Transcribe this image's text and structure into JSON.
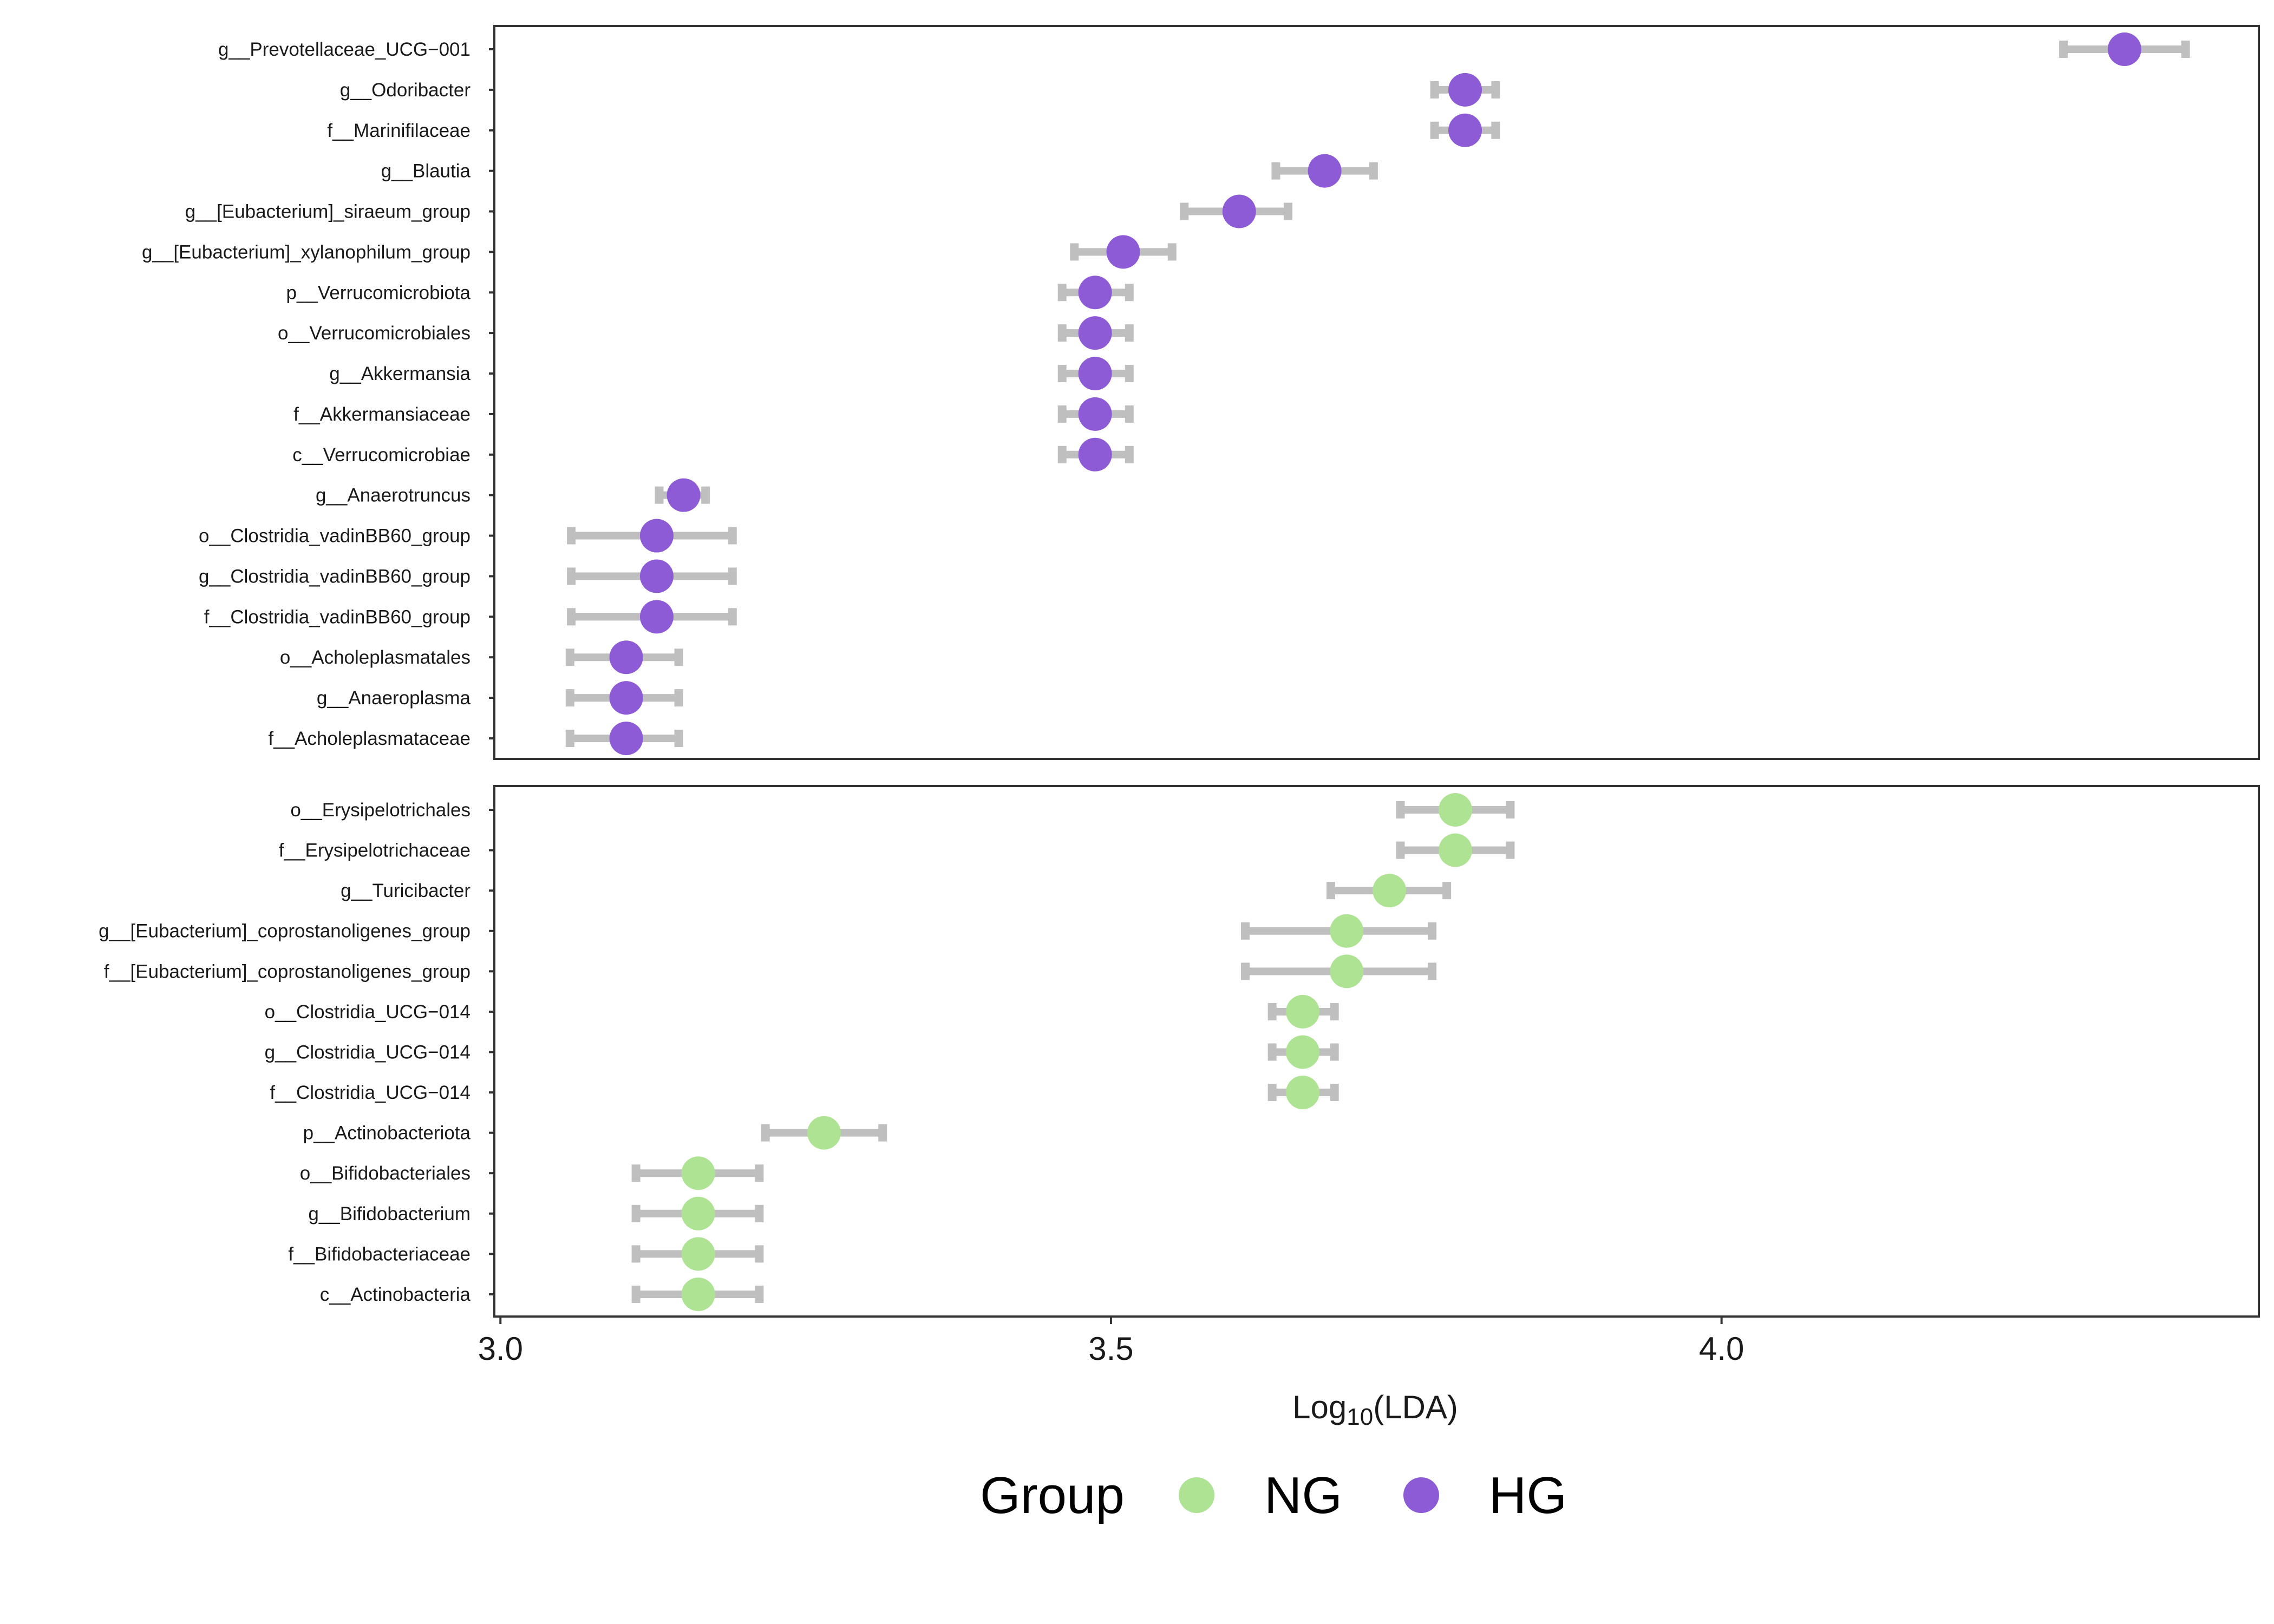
{
  "chart_data": {
    "type": "scatter",
    "xlabel": "Log10(LDA)",
    "xlabel_main": "Log",
    "xlabel_sub": "10",
    "xlabel_rest": "(LDA)",
    "xlim": [
      2.995,
      4.44
    ],
    "xticks": [
      "3.0",
      "3.5",
      "4.0"
    ],
    "xtick_values": [
      3.0,
      3.5,
      4.0
    ],
    "error_color": "#bfbfbf",
    "legend": {
      "title": "Group",
      "position": "bottom",
      "items": [
        {
          "name": "NG",
          "color": "#aee394"
        },
        {
          "name": "HG",
          "color": "#8e5bd6"
        }
      ]
    },
    "panels": [
      {
        "group": "HG",
        "color": "#8e5bd6",
        "rows": [
          {
            "label": "g__Prevotellaceae_UCG−001",
            "value": 4.33,
            "low": 4.28,
            "high": 4.38
          },
          {
            "label": "g__Odoribacter",
            "value": 3.79,
            "low": 3.765,
            "high": 3.815
          },
          {
            "label": "f__Marinifilaceae",
            "value": 3.79,
            "low": 3.765,
            "high": 3.815
          },
          {
            "label": "g__Blautia",
            "value": 3.675,
            "low": 3.635,
            "high": 3.715
          },
          {
            "label": "g__[Eubacterium]_siraeum_group",
            "value": 3.605,
            "low": 3.56,
            "high": 3.645
          },
          {
            "label": "g__[Eubacterium]_xylanophilum_group",
            "value": 3.51,
            "low": 3.47,
            "high": 3.55
          },
          {
            "label": "p__Verrucomicrobiota",
            "value": 3.487,
            "low": 3.46,
            "high": 3.515
          },
          {
            "label": "o__Verrucomicrobiales",
            "value": 3.487,
            "low": 3.46,
            "high": 3.515
          },
          {
            "label": "g__Akkermansia",
            "value": 3.487,
            "low": 3.46,
            "high": 3.515
          },
          {
            "label": "f__Akkermansiaceae",
            "value": 3.487,
            "low": 3.46,
            "high": 3.515
          },
          {
            "label": "c__Verrucomicrobiae",
            "value": 3.487,
            "low": 3.46,
            "high": 3.515
          },
          {
            "label": "g__Anaerotruncus",
            "value": 3.15,
            "low": 3.13,
            "high": 3.168
          },
          {
            "label": "o__Clostridia_vadinBB60_group",
            "value": 3.128,
            "low": 3.058,
            "high": 3.19
          },
          {
            "label": "g__Clostridia_vadinBB60_group",
            "value": 3.128,
            "low": 3.058,
            "high": 3.19
          },
          {
            "label": "f__Clostridia_vadinBB60_group",
            "value": 3.128,
            "low": 3.058,
            "high": 3.19
          },
          {
            "label": "o__Acholeplasmatales",
            "value": 3.103,
            "low": 3.057,
            "high": 3.146
          },
          {
            "label": "g__Anaeroplasma",
            "value": 3.103,
            "low": 3.057,
            "high": 3.146
          },
          {
            "label": "f__Acholeplasmataceae",
            "value": 3.103,
            "low": 3.057,
            "high": 3.146
          }
        ]
      },
      {
        "group": "NG",
        "color": "#aee394",
        "rows": [
          {
            "label": "o__Erysipelotrichales",
            "value": 3.782,
            "low": 3.737,
            "high": 3.827
          },
          {
            "label": "f__Erysipelotrichaceae",
            "value": 3.782,
            "low": 3.737,
            "high": 3.827
          },
          {
            "label": "g__Turicibacter",
            "value": 3.728,
            "low": 3.68,
            "high": 3.775
          },
          {
            "label": "g__[Eubacterium]_coprostanoligenes_group",
            "value": 3.693,
            "low": 3.61,
            "high": 3.763
          },
          {
            "label": "f__[Eubacterium]_coprostanoligenes_group",
            "value": 3.693,
            "low": 3.61,
            "high": 3.763
          },
          {
            "label": "o__Clostridia_UCG−014",
            "value": 3.657,
            "low": 3.632,
            "high": 3.683
          },
          {
            "label": "g__Clostridia_UCG−014",
            "value": 3.657,
            "low": 3.632,
            "high": 3.683
          },
          {
            "label": "f__Clostridia_UCG−014",
            "value": 3.657,
            "low": 3.632,
            "high": 3.683
          },
          {
            "label": "p__Actinobacteriota",
            "value": 3.265,
            "low": 3.217,
            "high": 3.313
          },
          {
            "label": "o__Bifidobacteriales",
            "value": 3.162,
            "low": 3.111,
            "high": 3.212
          },
          {
            "label": "g__Bifidobacterium",
            "value": 3.162,
            "low": 3.111,
            "high": 3.212
          },
          {
            "label": "f__Bifidobacteriaceae",
            "value": 3.162,
            "low": 3.111,
            "high": 3.212
          },
          {
            "label": "c__Actinobacteria",
            "value": 3.162,
            "low": 3.111,
            "high": 3.212
          }
        ]
      }
    ]
  }
}
